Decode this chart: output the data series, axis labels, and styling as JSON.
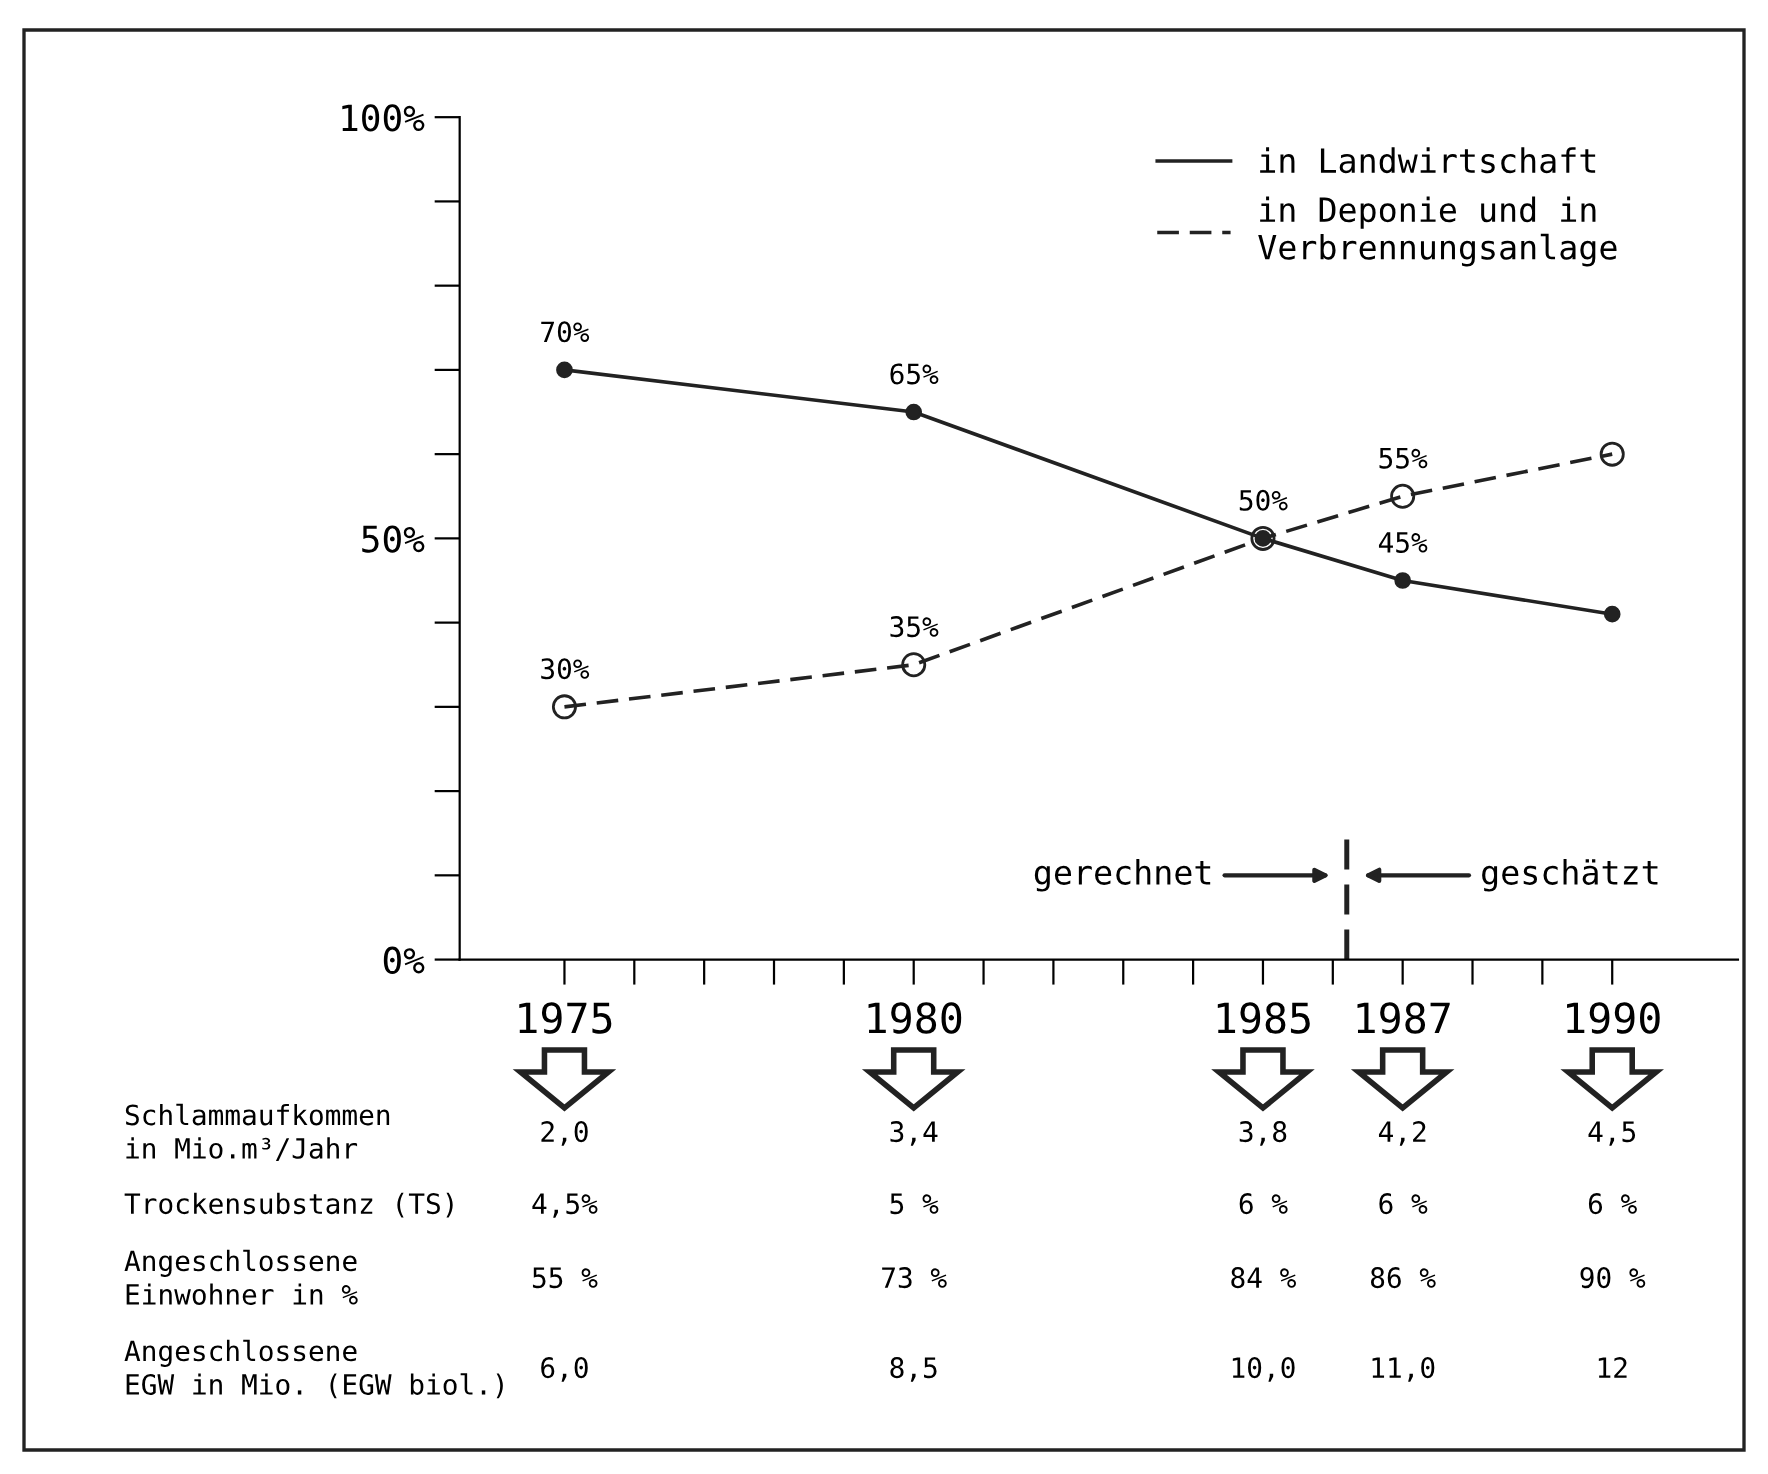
{
  "chart_data": [
    {
      "type": "line",
      "x": [
        1975,
        1980,
        1985,
        1987,
        1990
      ],
      "series": [
        {
          "name": "in Landwirtschaft",
          "color": "#222222",
          "line_style": "solid",
          "values": [
            70,
            65,
            50,
            45,
            41
          ],
          "value_labels": [
            "70%",
            "65%",
            "50%",
            "45%",
            null
          ]
        },
        {
          "name": "in Deponie und in\nVerbrennungsanlage",
          "color": "#222222",
          "line_style": "dashed",
          "values": [
            30,
            35,
            50,
            55,
            60
          ],
          "value_labels": [
            "30%",
            "35%",
            null,
            "55%",
            null
          ]
        }
      ],
      "xlim": [
        1973.5,
        1991.8
      ],
      "xticks": [
        1975,
        {
          "value": 1976,
          "label": null
        },
        {
          "value": 1977,
          "label": null
        },
        {
          "value": 1978,
          "label": null
        },
        {
          "value": 1979,
          "label": null
        },
        1980,
        {
          "value": 1981,
          "label": null
        },
        {
          "value": 1982,
          "label": null
        },
        {
          "value": 1983,
          "label": null
        },
        {
          "value": 1984,
          "label": null
        },
        1985,
        {
          "value": 1986,
          "label": null
        },
        1987,
        {
          "value": 1988,
          "label": null
        },
        {
          "value": 1989,
          "label": null
        },
        1990
      ],
      "ylim": [
        0,
        100
      ],
      "yticks": [
        {
          "value": 0,
          "label": "0%"
        },
        {
          "value": 10,
          "label": null
        },
        {
          "value": 20,
          "label": null
        },
        {
          "value": 30,
          "label": null
        },
        {
          "value": 40,
          "label": null
        },
        {
          "value": 50,
          "label": "50%"
        },
        {
          "value": 60,
          "label": null
        },
        {
          "value": 70,
          "label": null
        },
        {
          "value": 80,
          "label": null
        },
        {
          "value": 90,
          "label": null
        },
        {
          "value": 100,
          "label": "100%"
        }
      ],
      "marker": "circle",
      "legend": "top right",
      "ref_lines": [
        {
          "axis": "x",
          "value": 1986.2,
          "label": null,
          "color": "#222222",
          "line_style": "dashed"
        }
      ],
      "annotations": [
        "gerechnet",
        "geschätzt"
      ]
    },
    {
      "type": "other",
      "annotations": [
        "Schlammaufkommen\nin Mio.m³/Jahr",
        "2,0",
        "3,4",
        "3,8",
        "4,2",
        "4,5",
        "Trockensubstanz (TS)",
        "4,5%",
        "5 %",
        "6 %",
        "6 %",
        "6 %",
        "Angeschlossene\nEinwohner in %",
        "55 %",
        "73 %",
        "84 %",
        "86 %",
        "90 %",
        "Angeschlossene\nEGW in Mio. (EGW biol.)",
        "6,0",
        "8,5",
        "10,0",
        "11,0",
        "12"
      ]
    }
  ]
}
